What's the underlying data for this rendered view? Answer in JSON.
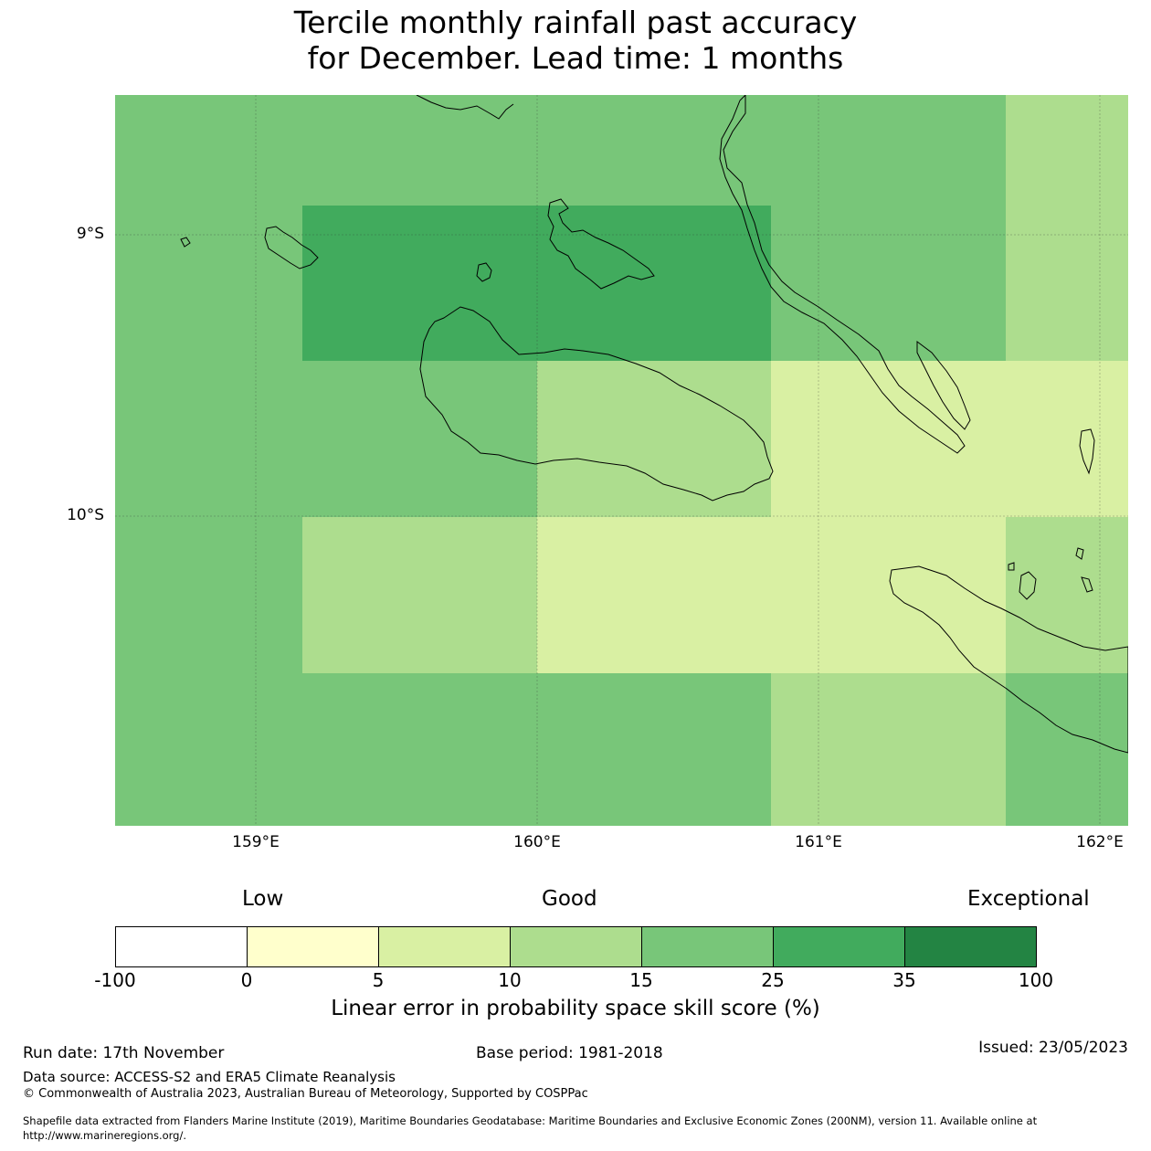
{
  "title_line1": "Tercile monthly rainfall past accuracy",
  "title_line2": "for December. Lead time: 1 months",
  "map": {
    "lat_labels": [
      "9°S",
      "10°S"
    ],
    "lon_labels": [
      "159°E",
      "160°E",
      "161°E",
      "162°E"
    ],
    "palette": {
      "d": "#41ab5d",
      "m": "#78c679",
      "l": "#addd8e",
      "y": "#d9f0a3"
    },
    "grid_rows": [
      [
        "m",
        "m",
        "m",
        "m",
        "m",
        "m",
        "m",
        "m",
        "m",
        "m",
        "m",
        "m",
        "m",
        "m",
        "m",
        "m",
        "m",
        "m",
        "m",
        "l",
        "l",
        "l",
        "l"
      ],
      [
        "m",
        "m",
        "m",
        "m",
        "m",
        "d",
        "d",
        "d",
        "d",
        "d",
        "d",
        "d",
        "d",
        "d",
        "d",
        "d",
        "m",
        "m",
        "m",
        "m",
        "m",
        "m",
        "m",
        "l",
        "l",
        "l",
        "l"
      ],
      [
        "m",
        "m",
        "m",
        "m",
        "m",
        "m",
        "m",
        "m",
        "m",
        "m",
        "l",
        "l",
        "l",
        "l",
        "l",
        "y",
        "y",
        "y",
        "y",
        "y",
        "y",
        "y",
        "y",
        "y"
      ],
      [
        "m",
        "m",
        "m",
        "m",
        "m",
        "l",
        "l",
        "l",
        "l",
        "l",
        "y",
        "y",
        "y",
        "y",
        "y",
        "y",
        "y",
        "y",
        "y",
        "y",
        "y",
        "l",
        "l",
        "l",
        "l"
      ],
      [
        "m",
        "m",
        "m",
        "m",
        "m",
        "m",
        "m",
        "m",
        "m",
        "m",
        "m",
        "m",
        "m",
        "m",
        "m",
        "l",
        "l",
        "l",
        "l",
        "l",
        "m",
        "m",
        "m",
        "m"
      ]
    ]
  },
  "legend": {
    "categories": [
      "Low",
      "Good",
      "Exceptional"
    ],
    "colors": [
      "#ffffff",
      "#ffffcc",
      "#d9f0a3",
      "#addd8e",
      "#78c679",
      "#41ab5d",
      "#238443"
    ],
    "ticks": [
      "-100",
      "0",
      "5",
      "10",
      "15",
      "25",
      "35",
      "100"
    ],
    "title": "Linear error in probability space skill score (%)"
  },
  "footer": {
    "run_date": "Run date: 17th November",
    "base_period": "Base period: 1981-2018",
    "issued": "Issued: 23/05/2023",
    "data_source": "Data source: ACCESS-S2 and ERA5 Climate Reanalysis",
    "copyright": "© Commonwealth of Australia 2023, Australian Bureau of Meteorology, Supported by COSPPac",
    "shapefile_line1": "Shapefile data extracted from Flanders Marine Institute (2019), Maritime Boundaries Geodatabase: Maritime Boundaries and Exclusive Economic Zones (200NM), version 11. Available online at",
    "shapefile_line2": "http://www.marineregions.org/."
  }
}
